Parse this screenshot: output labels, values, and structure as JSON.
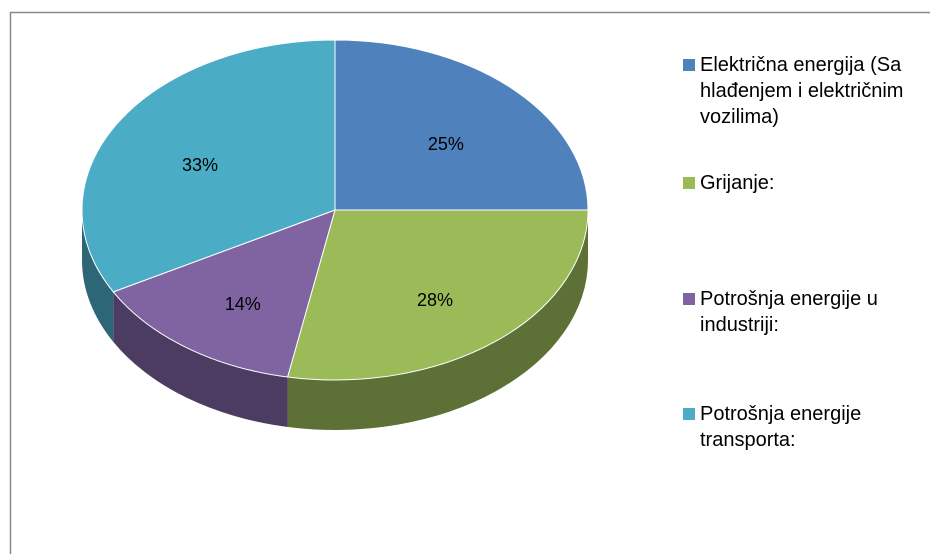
{
  "chart_data": {
    "type": "pie",
    "categories": [
      "Električna energija (Sa hlađenjem i električnim vozilima)",
      "Grijanje:",
      "Potrošnja energije u industriji:",
      "Potrošnja energije transporta:"
    ],
    "values": [
      25,
      28,
      14,
      33
    ],
    "value_labels": [
      "25%",
      "28%",
      "14%",
      "33%"
    ],
    "colors": [
      "#4f81bd",
      "#9bbb59",
      "#8064a2",
      "#4bacc6"
    ],
    "legend": "right"
  }
}
